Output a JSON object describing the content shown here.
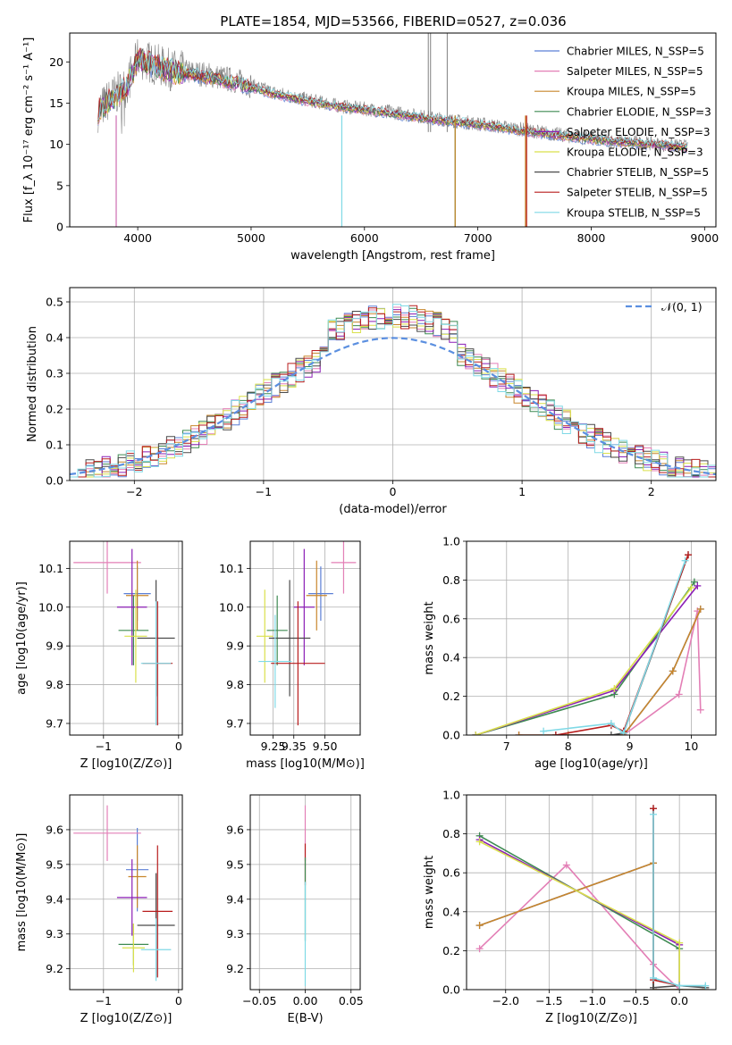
{
  "colors": {
    "Chabrier MILES": "#5b7fd6",
    "Salpeter MILES": "#e37fb6",
    "Kroupa MILES": "#c8862b",
    "Chabrier ELODIE": "#3e8a52",
    "Salpeter ELODIE": "#8b1fb5",
    "Kroupa ELODIE": "#d9e04a",
    "Chabrier STELIB": "#4a4a4a",
    "Salpeter STELIB": "#b81d1d",
    "Kroupa STELIB": "#7fd9e6",
    "observed": "#808080",
    "normal": "#5b8fe0"
  },
  "chart_data": [
    {
      "id": "spectrum",
      "type": "line",
      "title": "PLATE=1854, MJD=53566, FIBERID=0527, z=0.036",
      "xlabel": "wavelength [Angstrom, rest frame]",
      "ylabel": "Flux [f_λ 10⁻¹⁷ erg cm⁻² s⁻¹ A⁻¹]",
      "xlim": [
        3400,
        9100
      ],
      "ylim": [
        0,
        23.5
      ],
      "xticks": [
        4000,
        5000,
        6000,
        7000,
        8000,
        9000
      ],
      "yticks": [
        0,
        5,
        10,
        15,
        20
      ],
      "grid": false,
      "legend_position": "top-right",
      "legend": [
        "Chabrier MILES, N_SSP=5",
        "Salpeter MILES, N_SSP=5",
        "Kroupa MILES, N_SSP=5",
        "Chabrier ELODIE, N_SSP=3",
        "Salpeter ELODIE, N_SSP=3",
        "Kroupa ELODIE, N_SSP=3",
        "Chabrier STELIB, N_SSP=5",
        "Salpeter STELIB, N_SSP=5",
        "Kroupa STELIB, N_SSP=5"
      ],
      "observed_continuum": [
        [
          3650,
          14
        ],
        [
          3750,
          15.5
        ],
        [
          3900,
          17
        ],
        [
          4000,
          20.5
        ],
        [
          4100,
          20
        ],
        [
          4300,
          19
        ],
        [
          4600,
          18.5
        ],
        [
          4900,
          17.6
        ],
        [
          5200,
          16.3
        ],
        [
          5500,
          15.4
        ],
        [
          5800,
          14.6
        ],
        [
          6200,
          14
        ],
        [
          6600,
          13.2
        ],
        [
          7000,
          12.5
        ],
        [
          7400,
          11.8
        ],
        [
          7800,
          11
        ],
        [
          8200,
          10.4
        ],
        [
          8600,
          10
        ],
        [
          8850,
          9.7
        ]
      ],
      "model_continuum": [
        [
          3650,
          14
        ],
        [
          3750,
          15.2
        ],
        [
          3900,
          16.8
        ],
        [
          4000,
          20.3
        ],
        [
          4100,
          19.8
        ],
        [
          4300,
          18.8
        ],
        [
          4600,
          18.2
        ],
        [
          4900,
          17.3
        ],
        [
          5200,
          16.1
        ],
        [
          5500,
          15.2
        ],
        [
          5800,
          14.5
        ],
        [
          6200,
          13.8
        ],
        [
          6600,
          13
        ],
        [
          7000,
          12.4
        ],
        [
          7400,
          11.6
        ],
        [
          7800,
          10.9
        ],
        [
          8200,
          10.3
        ],
        [
          8600,
          9.9
        ],
        [
          8850,
          9.6
        ]
      ],
      "emission_lines": [
        6563,
        6583,
        6730
      ],
      "model_dropouts": [
        {
          "model": "Chabrier MILES",
          "x": 3810
        },
        {
          "model": "Salpeter MILES",
          "x": 3810
        },
        {
          "model": "Kroupa MILES",
          "x": 7420
        },
        {
          "model": "Salpeter STELIB",
          "x": 7430
        },
        {
          "model": "Kroupa STELIB",
          "x": 5800
        },
        {
          "model": "Chabrier ELODIE",
          "x": 6800
        },
        {
          "model": "Kroupa MILES",
          "x": 6800
        }
      ]
    },
    {
      "id": "residuals",
      "type": "area",
      "xlabel": "(data-model)/error",
      "ylabel": "Normed distribution",
      "xlim": [
        -2.5,
        2.5
      ],
      "ylim": [
        0,
        0.54
      ],
      "xticks": [
        -2,
        -1,
        0,
        1,
        2
      ],
      "yticks": [
        0.0,
        0.1,
        0.2,
        0.3,
        0.4,
        0.5
      ],
      "grid": true,
      "legend_position": "top-right",
      "legend": [
        "𝒩(0, 1)"
      ],
      "bin_width": 0.1,
      "bin_start": -2.5,
      "reference_histogram": [
        0.03,
        0.035,
        0.04,
        0.045,
        0.05,
        0.052,
        0.055,
        0.06,
        0.065,
        0.07,
        0.078,
        0.085,
        0.092,
        0.1,
        0.11,
        0.12,
        0.13,
        0.14,
        0.155,
        0.17,
        0.185,
        0.2,
        0.215,
        0.23,
        0.245,
        0.26,
        0.275,
        0.29,
        0.305,
        0.32,
        0.335,
        0.35,
        0.365,
        0.38,
        0.395,
        0.41,
        0.44,
        0.47,
        0.48,
        0.46,
        0.43,
        0.41,
        0.395,
        0.385,
        0.38,
        0.375,
        0.37,
        0.365,
        0.36,
        0.35,
        0.33,
        0.315,
        0.3,
        0.285,
        0.27,
        0.255,
        0.24,
        0.225,
        0.21,
        0.195,
        0.18,
        0.165,
        0.15,
        0.135,
        0.12,
        0.105,
        0.095,
        0.085,
        0.075,
        0.065,
        0.06,
        0.055,
        0.05,
        0.045,
        0.04,
        0.035,
        0.032,
        0.03,
        0.028,
        0.026
      ]
    },
    {
      "id": "Z-age",
      "type": "scatter",
      "xlabel": "Z [log10(Z/Z⊙)]",
      "ylabel": "age [log10(age/yr)]",
      "xlim": [
        -1.45,
        0.05
      ],
      "ylim": [
        9.67,
        10.17
      ],
      "xticks": [
        -1,
        0
      ],
      "yticks": [
        9.7,
        9.8,
        9.9,
        10.0,
        10.1
      ],
      "grid": true,
      "points": [
        {
          "model": "Chabrier MILES",
          "x": -0.55,
          "y": 10.035,
          "xerr": 0.18,
          "yerr": 0.07
        },
        {
          "model": "Salpeter MILES",
          "x": -0.95,
          "y": 10.115,
          "xerr": 0.45,
          "yerr": 0.08
        },
        {
          "model": "Kroupa MILES",
          "x": -0.55,
          "y": 10.03,
          "xerr": 0.15,
          "yerr": 0.09
        },
        {
          "model": "Chabrier ELODIE",
          "x": -0.6,
          "y": 9.94,
          "xerr": 0.2,
          "yerr": 0.09
        },
        {
          "model": "Salpeter ELODIE",
          "x": -0.62,
          "y": 10.0,
          "xerr": 0.2,
          "yerr": 0.15
        },
        {
          "model": "Kroupa ELODIE",
          "x": -0.57,
          "y": 9.925,
          "xerr": 0.15,
          "yerr": 0.12
        },
        {
          "model": "Chabrier STELIB",
          "x": -0.3,
          "y": 9.92,
          "xerr": 0.25,
          "yerr": 0.15
        },
        {
          "model": "Salpeter STELIB",
          "x": -0.28,
          "y": 9.855,
          "xerr": 0.2,
          "yerr": 0.16
        },
        {
          "model": "Kroupa STELIB",
          "x": -0.3,
          "y": 9.855,
          "xerr": 0.2,
          "yerr": 0.16
        }
      ]
    },
    {
      "id": "mass-age",
      "type": "scatter",
      "xlabel": "mass [log10(M/M⊙)]",
      "ylabel": "",
      "xlim": [
        9.14,
        9.67
      ],
      "ylim": [
        9.67,
        10.17
      ],
      "xticks": [
        9.25,
        9.35,
        9.5
      ],
      "xticklabels": [
        "9.25",
        "9.35",
        "9.50"
      ],
      "yticks": [
        9.7,
        9.8,
        9.9,
        10.0,
        10.1
      ],
      "grid": true,
      "points": [
        {
          "model": "Chabrier MILES",
          "x": 9.48,
          "y": 10.035,
          "xerr": 0.06,
          "yerr": 0.07
        },
        {
          "model": "Salpeter MILES",
          "x": 9.59,
          "y": 10.115,
          "xerr": 0.06,
          "yerr": 0.08
        },
        {
          "model": "Kroupa MILES",
          "x": 9.46,
          "y": 10.03,
          "xerr": 0.05,
          "yerr": 0.09
        },
        {
          "model": "Chabrier ELODIE",
          "x": 9.27,
          "y": 9.94,
          "xerr": 0.05,
          "yerr": 0.09
        },
        {
          "model": "Salpeter ELODIE",
          "x": 9.4,
          "y": 10.0,
          "xerr": 0.05,
          "yerr": 0.15
        },
        {
          "model": "Kroupa ELODIE",
          "x": 9.21,
          "y": 9.925,
          "xerr": 0.04,
          "yerr": 0.12
        },
        {
          "model": "Chabrier STELIB",
          "x": 9.33,
          "y": 9.92,
          "xerr": 0.1,
          "yerr": 0.15
        },
        {
          "model": "Salpeter STELIB",
          "x": 9.37,
          "y": 9.855,
          "xerr": 0.13,
          "yerr": 0.16
        },
        {
          "model": "Kroupa STELIB",
          "x": 9.26,
          "y": 9.86,
          "xerr": 0.08,
          "yerr": 0.12
        }
      ]
    },
    {
      "id": "age-weight",
      "type": "line",
      "xlabel": "age [log10(age/yr)]",
      "ylabel": "mass weight",
      "xlim": [
        6.35,
        10.4
      ],
      "ylim": [
        0,
        1
      ],
      "xticks": [
        7,
        8,
        9,
        10
      ],
      "yticks": [
        0.0,
        0.2,
        0.4,
        0.6,
        0.8,
        1.0
      ],
      "grid": true,
      "series": [
        {
          "model": "Chabrier MILES",
          "x": [
            7.2,
            8.0,
            8.9,
            9.7,
            10.15
          ],
          "y": [
            0.0,
            0.0,
            0.0,
            0.33,
            0.65
          ]
        },
        {
          "model": "Salpeter MILES",
          "x": [
            7.2,
            8.0,
            8.9,
            9.8,
            10.1,
            10.15
          ],
          "y": [
            0.0,
            0.0,
            0.0,
            0.21,
            0.64,
            0.13
          ]
        },
        {
          "model": "Kroupa MILES",
          "x": [
            7.2,
            8.0,
            8.9,
            9.7,
            10.15
          ],
          "y": [
            0.0,
            0.0,
            0.0,
            0.33,
            0.65
          ]
        },
        {
          "model": "Chabrier ELODIE",
          "x": [
            6.5,
            8.75,
            10.05
          ],
          "y": [
            0.0,
            0.21,
            0.79
          ]
        },
        {
          "model": "Salpeter ELODIE",
          "x": [
            6.5,
            8.75,
            10.1
          ],
          "y": [
            0.0,
            0.23,
            0.77
          ]
        },
        {
          "model": "Kroupa ELODIE",
          "x": [
            6.5,
            8.75,
            10.0
          ],
          "y": [
            0.0,
            0.24,
            0.76
          ]
        },
        {
          "model": "Chabrier STELIB",
          "x": [
            7.8,
            8.7,
            8.9,
            9.95
          ],
          "y": [
            0.0,
            0.0,
            0.01,
            0.93
          ]
        },
        {
          "model": "Salpeter STELIB",
          "x": [
            7.8,
            8.7,
            8.9,
            9.95
          ],
          "y": [
            0.0,
            0.05,
            0.02,
            0.93
          ]
        },
        {
          "model": "Kroupa STELIB",
          "x": [
            7.6,
            8.7,
            8.9,
            9.9
          ],
          "y": [
            0.02,
            0.06,
            0.01,
            0.9
          ]
        }
      ]
    },
    {
      "id": "Z-mass",
      "type": "scatter",
      "xlabel": "Z [log10(Z/Z⊙)]",
      "ylabel": "mass [log10(M/M⊙)]",
      "xlim": [
        -1.45,
        0.05
      ],
      "ylim": [
        9.14,
        9.7
      ],
      "xticks": [
        -1,
        0
      ],
      "yticks": [
        9.2,
        9.3,
        9.4,
        9.5,
        9.6
      ],
      "grid": true,
      "points": [
        {
          "model": "Chabrier MILES",
          "x": -0.55,
          "y": 9.485,
          "xerr": 0.15,
          "yerr": 0.12
        },
        {
          "model": "Salpeter MILES",
          "x": -0.95,
          "y": 9.59,
          "xerr": 0.45,
          "yerr": 0.08
        },
        {
          "model": "Kroupa MILES",
          "x": -0.55,
          "y": 9.465,
          "xerr": 0.12,
          "yerr": 0.09
        },
        {
          "model": "Chabrier ELODIE",
          "x": -0.6,
          "y": 9.27,
          "xerr": 0.2,
          "yerr": 0.06
        },
        {
          "model": "Salpeter ELODIE",
          "x": -0.62,
          "y": 9.405,
          "xerr": 0.2,
          "yerr": 0.11
        },
        {
          "model": "Kroupa ELODIE",
          "x": -0.6,
          "y": 9.26,
          "xerr": 0.15,
          "yerr": 0.07
        },
        {
          "model": "Chabrier STELIB",
          "x": -0.3,
          "y": 9.325,
          "xerr": 0.25,
          "yerr": 0.15
        },
        {
          "model": "Salpeter STELIB",
          "x": -0.28,
          "y": 9.365,
          "xerr": 0.2,
          "yerr": 0.19
        },
        {
          "model": "Kroupa STELIB",
          "x": -0.3,
          "y": 9.255,
          "xerr": 0.2,
          "yerr": 0.09
        }
      ]
    },
    {
      "id": "ebv-mass",
      "type": "scatter",
      "xlabel": "E(B-V)",
      "ylabel": "",
      "xlim": [
        -0.06,
        0.06
      ],
      "ylim": [
        9.14,
        9.7
      ],
      "xticks": [
        -0.05,
        0.0,
        0.05
      ],
      "xticklabels": [
        "−0.05",
        "0.00",
        "0.05"
      ],
      "yticks": [
        9.2,
        9.3,
        9.4,
        9.5,
        9.6
      ],
      "grid": true,
      "points": [
        {
          "model": "Salpeter MILES",
          "x": 0.0,
          "y": 9.59,
          "yerr": 0.08
        },
        {
          "model": "Salpeter STELIB",
          "x": 0.0,
          "y": 9.5,
          "yerr": 0.06
        },
        {
          "model": "Chabrier ELODIE",
          "x": 0.0,
          "y": 9.4,
          "yerr": 0.12
        },
        {
          "model": "Kroupa STELIB",
          "x": 0.0,
          "y": 9.3,
          "yerr": 0.15
        }
      ]
    },
    {
      "id": "Z-weight",
      "type": "line",
      "xlabel": "Z [log10(Z/Z⊙)]",
      "ylabel": "mass weight",
      "xlim": [
        -2.45,
        0.42
      ],
      "ylim": [
        0,
        1
      ],
      "xticks": [
        -2.0,
        -1.5,
        -1.0,
        -0.5,
        0.0
      ],
      "xticklabels": [
        "−2.0",
        "−1.5",
        "−1.0",
        "−0.5",
        "0.0"
      ],
      "yticks": [
        0.0,
        0.2,
        0.4,
        0.6,
        0.8,
        1.0
      ],
      "grid": true,
      "series": [
        {
          "model": "Chabrier MILES",
          "x": [
            -2.3,
            -0.3,
            -0.3,
            0.0,
            0.3
          ],
          "y": [
            0.33,
            0.65,
            0.0,
            0.0,
            0.0
          ]
        },
        {
          "model": "Salpeter MILES",
          "x": [
            -2.3,
            -1.3,
            -0.3,
            0.0
          ],
          "y": [
            0.21,
            0.64,
            0.13,
            0.0
          ]
        },
        {
          "model": "Kroupa MILES",
          "x": [
            -2.3,
            -0.3,
            -0.3,
            0.0,
            0.3
          ],
          "y": [
            0.33,
            0.65,
            0.0,
            0.0,
            0.0
          ]
        },
        {
          "model": "Chabrier ELODIE",
          "x": [
            -2.3,
            0.0,
            0.0
          ],
          "y": [
            0.79,
            0.21,
            0.0
          ]
        },
        {
          "model": "Salpeter ELODIE",
          "x": [
            -2.3,
            0.0,
            0.0
          ],
          "y": [
            0.77,
            0.23,
            0.0
          ]
        },
        {
          "model": "Kroupa ELODIE",
          "x": [
            -2.3,
            0.0,
            0.0
          ],
          "y": [
            0.76,
            0.24,
            0.0
          ]
        },
        {
          "model": "Chabrier STELIB",
          "x": [
            -0.3,
            -0.3,
            0.0,
            0.3
          ],
          "y": [
            0.93,
            0.01,
            0.02,
            0.01
          ]
        },
        {
          "model": "Salpeter STELIB",
          "x": [
            -0.3,
            -0.3,
            0.0
          ],
          "y": [
            0.93,
            0.05,
            0.02
          ]
        },
        {
          "model": "Kroupa STELIB",
          "x": [
            -0.3,
            -0.3,
            0.0,
            0.3
          ],
          "y": [
            0.9,
            0.06,
            0.02,
            0.02
          ]
        }
      ]
    }
  ]
}
